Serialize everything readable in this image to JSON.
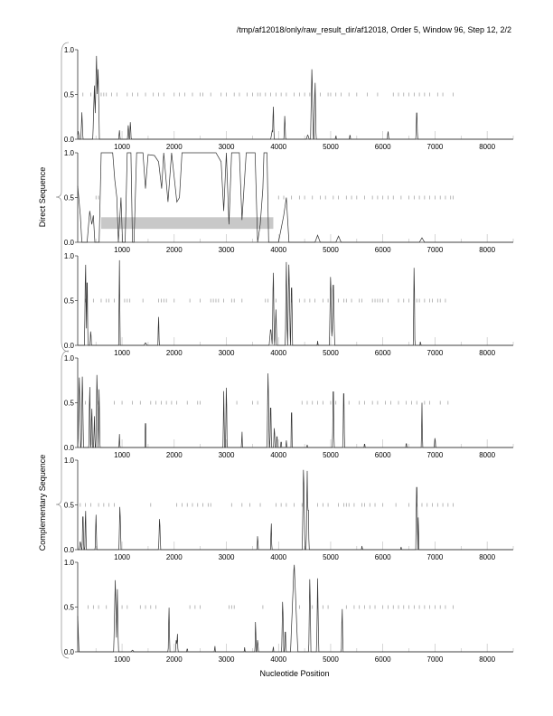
{
  "chart_data": {
    "type": "line",
    "title": "/tmp/af12018/only/raw_result_dir/af12018, Order 5, Window 96, Step 12, 2/2",
    "xlabel": "Nucleotide Position",
    "group_labels": [
      "Direct Sequence",
      "Complementary Sequence"
    ],
    "xlim": [
      150,
      8500
    ],
    "ylim": [
      0,
      1
    ],
    "xticks": [
      1000,
      2000,
      3000,
      4000,
      5000,
      6000,
      7000,
      8000
    ],
    "yticks": [
      "0.0",
      "0.5",
      "1.0"
    ],
    "series_color": "#333333",
    "marker_color": "#999999",
    "band_color": "#c8c8c8",
    "panels": [
      {
        "group": "Direct Sequence",
        "peaks": [
          [
            160,
            0.1,
            20
          ],
          [
            230,
            0.3,
            20
          ],
          [
            470,
            0.6,
            30
          ],
          [
            510,
            0.93,
            35
          ],
          [
            540,
            0.85,
            25
          ],
          [
            950,
            0.1,
            15
          ],
          [
            1120,
            0.18,
            15
          ],
          [
            1160,
            0.22,
            15
          ],
          [
            3880,
            0.1,
            30
          ],
          [
            3900,
            0.42,
            15
          ],
          [
            4120,
            0.3,
            15
          ],
          [
            4560,
            0.05,
            30
          ],
          [
            4640,
            0.85,
            25
          ],
          [
            4700,
            0.7,
            20
          ],
          [
            5100,
            0.05,
            10
          ],
          [
            5370,
            0.07,
            10
          ],
          [
            6100,
            0.1,
            15
          ],
          [
            6650,
            0.4,
            15
          ]
        ],
        "markers": [
          250,
          400,
          600,
          650,
          700,
          800,
          900,
          1100,
          1200,
          1300,
          1450,
          1600,
          1700,
          1800,
          2000,
          2100,
          2200,
          2350,
          2500,
          2550,
          2700,
          2900,
          3000,
          3150,
          3250,
          3400,
          3500,
          3600,
          3650,
          3750,
          3850,
          3950,
          4050,
          4150,
          4300,
          4400,
          4500,
          4600,
          4700,
          4800,
          4950,
          5000,
          5100,
          5200,
          5350,
          5500,
          5700,
          5900,
          6200,
          6300,
          6400,
          6500,
          6600,
          6700,
          6800,
          6900,
          7050,
          7150,
          7350
        ]
      },
      {
        "group": "Direct Sequence",
        "profile": [
          [
            150,
            0.63
          ],
          [
            200,
            0.3
          ],
          [
            230,
            0.0
          ],
          [
            330,
            0.0
          ],
          [
            380,
            0.35
          ],
          [
            420,
            0.2
          ],
          [
            450,
            0.3
          ],
          [
            480,
            0.0
          ],
          [
            560,
            0.0
          ],
          [
            600,
            1.0
          ],
          [
            820,
            1.0
          ],
          [
            860,
            0.7
          ],
          [
            900,
            0.5
          ],
          [
            930,
            0.0
          ],
          [
            980,
            0.5
          ],
          [
            1010,
            0.0
          ],
          [
            1060,
            0.0
          ],
          [
            1100,
            1.0
          ],
          [
            1170,
            1.0
          ],
          [
            1200,
            0.0
          ],
          [
            1230,
            0.0
          ],
          [
            1280,
            1.0
          ],
          [
            1400,
            1.0
          ],
          [
            1450,
            0.6
          ],
          [
            1500,
            0.98
          ],
          [
            1620,
            0.97
          ],
          [
            1700,
            0.9
          ],
          [
            1760,
            0.6
          ],
          [
            1800,
            1.0
          ],
          [
            1880,
            0.45
          ],
          [
            1950,
            1.0
          ],
          [
            2050,
            0.45
          ],
          [
            2100,
            0.5
          ],
          [
            2150,
            1.0
          ],
          [
            2800,
            1.0
          ],
          [
            2900,
            0.9
          ],
          [
            2950,
            0.35
          ],
          [
            3000,
            1.0
          ],
          [
            3050,
            0.2
          ],
          [
            3100,
            1.0
          ],
          [
            3250,
            1.0
          ],
          [
            3300,
            0.25
          ],
          [
            3380,
            1.0
          ],
          [
            3550,
            1.0
          ],
          [
            3600,
            0.0
          ],
          [
            3650,
            0.2
          ],
          [
            3700,
            0.6
          ],
          [
            3720,
            1.0
          ],
          [
            3780,
            1.0
          ],
          [
            3810,
            0.0
          ],
          [
            4000,
            0.0
          ],
          [
            4100,
            0.3
          ],
          [
            4150,
            0.5
          ],
          [
            4200,
            0.0
          ],
          [
            4700,
            0.0
          ],
          [
            4750,
            0.08
          ],
          [
            4800,
            0.0
          ],
          [
            5100,
            0.0
          ],
          [
            5150,
            0.07
          ],
          [
            5200,
            0.0
          ],
          [
            6700,
            0.0
          ],
          [
            6750,
            0.05
          ],
          [
            6800,
            0.0
          ],
          [
            8500,
            0.0
          ]
        ],
        "band": [
          600,
          3900,
          0.15,
          0.28
        ],
        "markers": [
          500,
          550,
          4000,
          4100,
          4250,
          4400,
          4500,
          4650,
          4800,
          4900,
          5050,
          5150,
          5300,
          5400,
          5500,
          5650,
          5800,
          5900,
          6000,
          6100,
          6200,
          6350,
          6500,
          6600,
          6700,
          6800,
          6900,
          7000,
          7100,
          7200,
          7300,
          7350
        ]
      },
      {
        "group": "Direct Sequence",
        "peaks": [
          [
            100,
            0.02,
            20
          ],
          [
            300,
            1.0,
            20
          ],
          [
            330,
            0.95,
            15
          ],
          [
            400,
            0.18,
            15
          ],
          [
            950,
            0.95,
            15
          ],
          [
            1450,
            0.03,
            30
          ],
          [
            1700,
            0.38,
            12
          ],
          [
            3850,
            0.2,
            30
          ],
          [
            3900,
            0.9,
            20
          ],
          [
            3950,
            0.4,
            20
          ],
          [
            4150,
            0.93,
            20
          ],
          [
            4200,
            0.98,
            25
          ],
          [
            4250,
            0.8,
            20
          ],
          [
            4750,
            0.05,
            10
          ],
          [
            5000,
            0.83,
            25
          ],
          [
            5050,
            0.8,
            25
          ],
          [
            6600,
            1.0,
            15
          ],
          [
            6720,
            0.05,
            10
          ]
        ],
        "markers": [
          300,
          450,
          600,
          700,
          750,
          850,
          1050,
          1100,
          1150,
          1400,
          1700,
          1750,
          1800,
          1850,
          2000,
          2300,
          2500,
          2700,
          2750,
          2800,
          2850,
          2950,
          3100,
          3150,
          3300,
          3750,
          3800,
          3950,
          4250,
          4400,
          4500,
          4600,
          4700,
          4850,
          4950,
          5150,
          5250,
          5300,
          5400,
          5550,
          5600,
          5800,
          5850,
          5900,
          5950,
          6000,
          6100,
          6300,
          6400,
          6500,
          6650,
          6700,
          6800,
          6900,
          6950,
          7050,
          7100,
          7200
        ]
      },
      {
        "group": "Complementary Sequence",
        "peaks": [
          [
            180,
            0.85,
            25
          ],
          [
            240,
            0.88,
            20
          ],
          [
            380,
            0.78,
            15
          ],
          [
            420,
            0.5,
            15
          ],
          [
            470,
            0.35,
            15
          ],
          [
            520,
            0.9,
            20
          ],
          [
            560,
            0.75,
            15
          ],
          [
            950,
            0.15,
            10
          ],
          [
            1450,
            0.4,
            12
          ],
          [
            2950,
            0.63,
            15
          ],
          [
            3000,
            0.77,
            15
          ],
          [
            3300,
            0.22,
            10
          ],
          [
            3800,
            0.92,
            20
          ],
          [
            3850,
            0.6,
            15
          ],
          [
            3920,
            0.25,
            15
          ],
          [
            3970,
            0.2,
            10
          ],
          [
            4050,
            0.1,
            10
          ],
          [
            4150,
            0.08,
            10
          ],
          [
            4250,
            0.58,
            12
          ],
          [
            4550,
            0.03,
            10
          ],
          [
            5050,
            0.85,
            15
          ],
          [
            5250,
            0.82,
            15
          ],
          [
            5650,
            0.06,
            10
          ],
          [
            6450,
            0.07,
            10
          ],
          [
            6750,
            0.5,
            12
          ],
          [
            7000,
            0.12,
            15
          ]
        ],
        "markers": [
          300,
          550,
          850,
          1000,
          1200,
          1350,
          1550,
          1650,
          1750,
          1850,
          1950,
          2050,
          2250,
          2450,
          2500,
          3200,
          3500,
          3600,
          4450,
          4550,
          4650,
          4750,
          4850,
          5000,
          5100,
          5250,
          5350,
          5550,
          5650,
          5800,
          5900,
          6050,
          6150,
          6300,
          6450,
          6550,
          6650,
          6800,
          6900,
          7100,
          7250
        ]
      },
      {
        "group": "Complementary Sequence",
        "peaks": [
          [
            200,
            0.1,
            20
          ],
          [
            250,
            0.5,
            15
          ],
          [
            300,
            0.5,
            15
          ],
          [
            500,
            0.45,
            15
          ],
          [
            960,
            0.53,
            20
          ],
          [
            1720,
            0.38,
            20
          ],
          [
            3600,
            0.18,
            12
          ],
          [
            3860,
            0.35,
            12
          ],
          [
            4480,
            0.97,
            25
          ],
          [
            4550,
            0.88,
            20
          ],
          [
            4570,
            0.6,
            15
          ],
          [
            5600,
            0.05,
            10
          ],
          [
            6350,
            0.03,
            10
          ],
          [
            6650,
            0.87,
            20
          ],
          [
            6680,
            0.45,
            10
          ]
        ],
        "markers": [
          200,
          300,
          400,
          550,
          650,
          750,
          850,
          1550,
          2050,
          2150,
          2250,
          2350,
          2450,
          2550,
          2650,
          2700,
          3100,
          3300,
          3450,
          3650,
          3950,
          4050,
          4150,
          4300,
          4450,
          4750,
          4850,
          4950,
          5150,
          5250,
          5300,
          5350,
          5450,
          5600,
          5650,
          5750,
          5850,
          6000,
          6250,
          6500,
          6650,
          6750,
          6850,
          6950,
          7050,
          7150,
          7250,
          7350
        ]
      },
      {
        "group": "Complementary Sequence",
        "peaks": [
          [
            150,
            0.4,
            25
          ],
          [
            870,
            0.8,
            30
          ],
          [
            910,
            0.7,
            20
          ],
          [
            1200,
            0.02,
            30
          ],
          [
            1900,
            0.57,
            15
          ],
          [
            2040,
            0.15,
            15
          ],
          [
            2060,
            0.24,
            12
          ],
          [
            2250,
            0.05,
            10
          ],
          [
            2780,
            0.08,
            10
          ],
          [
            3350,
            0.05,
            10
          ],
          [
            3560,
            0.4,
            12
          ],
          [
            3600,
            0.15,
            15
          ],
          [
            3900,
            0.07,
            10
          ],
          [
            4080,
            0.62,
            20
          ],
          [
            4130,
            0.3,
            15
          ],
          [
            4300,
            1.0,
            70
          ],
          [
            4600,
            0.9,
            20
          ],
          [
            4750,
            0.82,
            20
          ],
          [
            5220,
            0.55,
            15
          ]
        ],
        "markers": [
          350,
          450,
          550,
          700,
          1000,
          1100,
          1350,
          1450,
          1550,
          1650,
          2300,
          2400,
          2500,
          3050,
          3100,
          3150,
          3700,
          4400,
          4650,
          4750,
          4850,
          4950,
          5300,
          5450,
          5550,
          5650,
          5750,
          5850,
          6000,
          6100,
          6200,
          6300,
          6400,
          6500,
          6600,
          6700,
          6800,
          6900,
          7000,
          7100,
          7200,
          7350
        ]
      }
    ]
  }
}
